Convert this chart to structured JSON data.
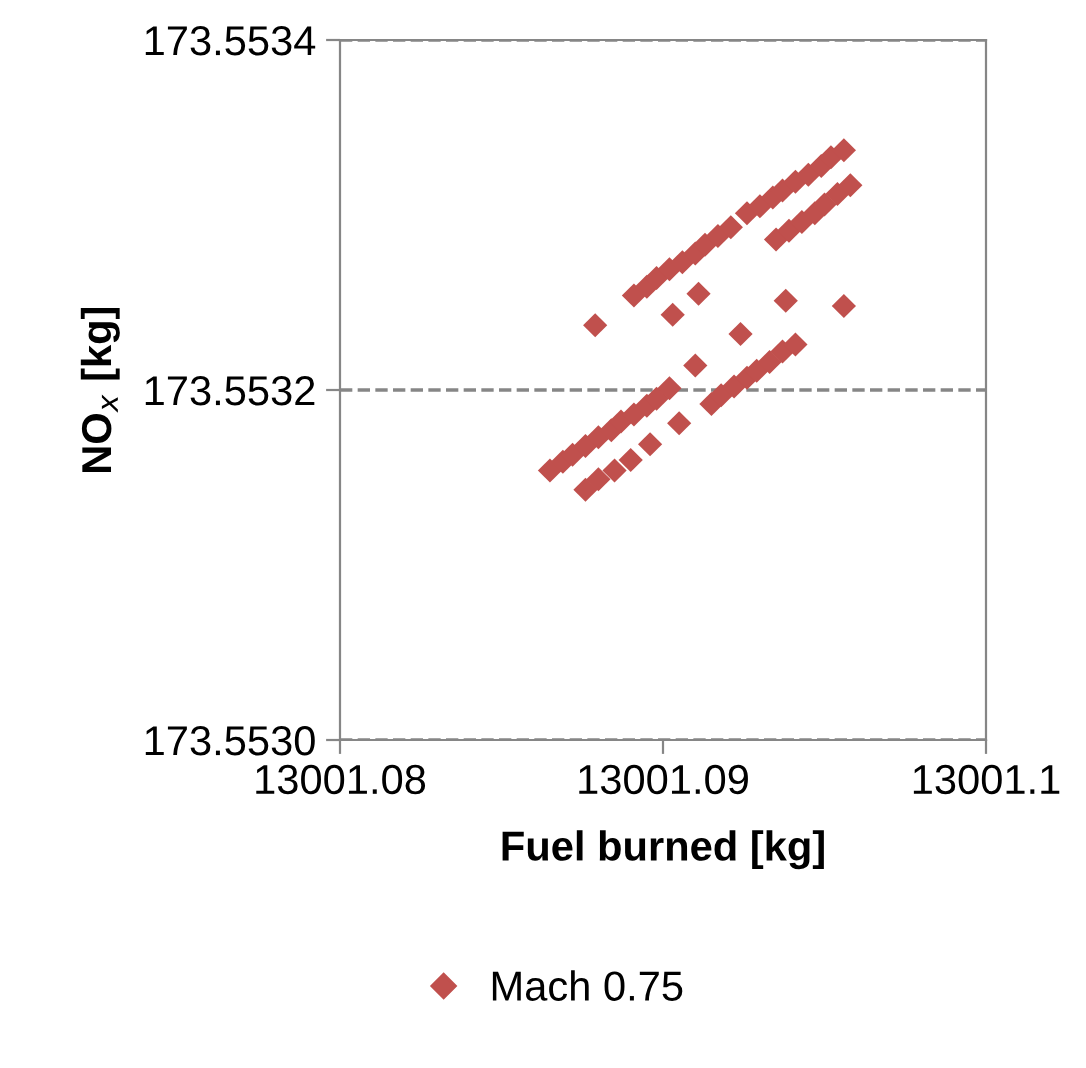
{
  "chart_data": {
    "type": "scatter",
    "xlabel": "Fuel burned [kg]",
    "ylabel": "NO$_{x}$ [kg]",
    "xlim": [
      13001.08,
      13001.1
    ],
    "xticks": [
      13001.08,
      13001.09,
      13001.1
    ],
    "ylim": [
      173.553,
      173.5534
    ],
    "yticks": [
      {
        "value": 173.553,
        "label": "173.5530"
      },
      {
        "value": 173.5532,
        "label": "173.5532"
      },
      {
        "value": 173.5534,
        "label": "173.5534"
      }
    ],
    "grid": "y",
    "line_style": "dashed",
    "marker": "diamond",
    "legend": "bottom",
    "series": [
      {
        "name": "Mach 0.75",
        "color": "#c0504d",
        "x": [
          13001.0865,
          13001.0869,
          13001.0872,
          13001.0876,
          13001.088,
          13001.0884,
          13001.0887,
          13001.0891,
          13001.0895,
          13001.0898,
          13001.0902,
          13001.0915,
          13001.0918,
          13001.0922,
          13001.0926,
          13001.0929,
          13001.0933,
          13001.0937,
          13001.0941,
          13001.0876,
          13001.088,
          13001.0885,
          13001.089,
          13001.0896,
          13001.0905,
          13001.091,
          13001.0924,
          13001.0903,
          13001.0911,
          13001.0938,
          13001.0956,
          13001.0879,
          13001.0935,
          13001.0891,
          13001.0895,
          13001.0898,
          13001.0902,
          13001.0906,
          13001.091,
          13001.0913,
          13001.0917,
          13001.0921,
          13001.0926,
          13001.093,
          13001.0934,
          13001.0937,
          13001.0941,
          13001.0945,
          13001.0949,
          13001.0952,
          13001.0956,
          13001.0939,
          13001.0943,
          13001.0947,
          13001.095,
          13001.0954,
          13001.0958
        ],
        "values": [
          173.553154,
          173.553159,
          173.553163,
          173.553168,
          173.553173,
          173.553177,
          173.553182,
          173.553186,
          173.553191,
          173.553195,
          173.553201,
          173.553192,
          173.553197,
          173.553202,
          173.553207,
          173.553211,
          173.553216,
          173.553222,
          173.553226,
          173.553143,
          173.553149,
          173.553154,
          173.55316,
          173.553169,
          173.553181,
          173.553214,
          173.553232,
          173.553243,
          173.553255,
          173.553251,
          173.553248,
          173.553237,
          173.553286,
          173.553254,
          173.553259,
          173.553264,
          173.553269,
          173.553273,
          173.553278,
          173.553283,
          173.553288,
          173.553293,
          173.553301,
          173.553305,
          173.55331,
          173.553314,
          173.553319,
          173.553323,
          173.553328,
          173.553333,
          173.553337,
          173.553291,
          173.553296,
          173.553301,
          173.553306,
          173.553312,
          173.553317
        ]
      }
    ]
  }
}
